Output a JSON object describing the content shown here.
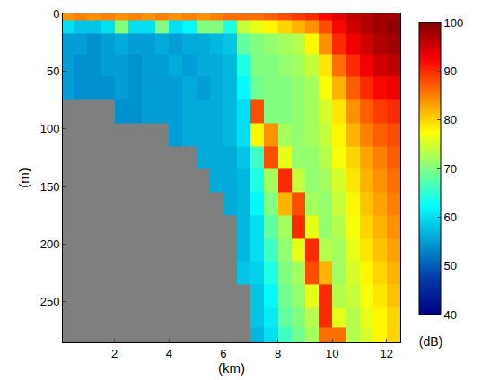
{
  "chart_data": {
    "type": "heatmap",
    "x": [
      0.25,
      0.75,
      1.25,
      1.75,
      2.25,
      2.75,
      3.25,
      3.75,
      4.25,
      4.75,
      5.25,
      5.75,
      6.25,
      6.75,
      7.25,
      7.75,
      8.25,
      8.75,
      9.25,
      9.75,
      10.25,
      10.75,
      11.25,
      11.75,
      12.25
    ],
    "y": [
      2,
      10,
      25,
      45,
      65,
      85,
      105,
      125,
      145,
      165,
      185,
      205,
      225,
      245,
      265,
      280
    ],
    "z": [
      [
        84,
        85,
        84,
        85,
        84,
        85,
        84,
        85,
        84,
        85,
        84,
        85,
        86,
        86,
        86,
        87,
        88,
        89,
        90,
        92,
        94,
        96,
        97,
        98,
        98
      ],
      [
        60,
        58,
        58,
        60,
        70,
        60,
        60,
        70,
        60,
        62,
        70,
        70,
        64,
        74,
        76,
        78,
        80,
        82,
        84,
        88,
        92,
        95,
        97,
        98,
        99
      ],
      [
        55,
        55,
        54,
        55,
        56,
        55,
        55,
        56,
        55,
        56,
        56,
        57,
        58,
        68,
        70,
        71,
        72,
        73,
        78,
        84,
        90,
        93,
        95,
        97,
        98
      ],
      [
        55,
        54,
        54,
        55,
        55,
        54,
        55,
        55,
        56,
        55,
        56,
        56,
        57,
        64,
        70,
        70,
        71,
        72,
        74,
        79,
        86,
        90,
        93,
        95,
        96
      ],
      [
        55,
        54,
        54,
        54,
        55,
        54,
        55,
        55,
        55,
        56,
        55,
        56,
        57,
        62,
        69,
        70,
        70,
        71,
        72,
        77,
        82,
        87,
        90,
        92,
        93
      ],
      [
        null,
        null,
        null,
        null,
        54,
        54,
        55,
        55,
        55,
        56,
        56,
        56,
        57,
        60,
        88,
        70,
        70,
        71,
        72,
        75,
        79,
        84,
        87,
        89,
        90
      ],
      [
        null,
        null,
        null,
        null,
        null,
        null,
        null,
        null,
        55,
        56,
        56,
        56,
        57,
        60,
        78,
        84,
        72,
        71,
        72,
        74,
        78,
        82,
        85,
        87,
        88
      ],
      [
        null,
        null,
        null,
        null,
        null,
        null,
        null,
        null,
        null,
        null,
        56,
        56,
        56,
        58,
        66,
        88,
        76,
        71,
        71,
        73,
        77,
        80,
        83,
        85,
        87
      ],
      [
        null,
        null,
        null,
        null,
        null,
        null,
        null,
        null,
        null,
        null,
        null,
        56,
        56,
        57,
        64,
        72,
        90,
        74,
        71,
        72,
        75,
        79,
        82,
        84,
        86
      ],
      [
        null,
        null,
        null,
        null,
        null,
        null,
        null,
        null,
        null,
        null,
        null,
        null,
        56,
        57,
        62,
        70,
        82,
        88,
        72,
        71,
        74,
        78,
        81,
        83,
        85
      ],
      [
        null,
        null,
        null,
        null,
        null,
        null,
        null,
        null,
        null,
        null,
        null,
        null,
        null,
        57,
        60,
        68,
        72,
        90,
        76,
        71,
        73,
        77,
        80,
        82,
        84
      ],
      [
        null,
        null,
        null,
        null,
        null,
        null,
        null,
        null,
        null,
        null,
        null,
        null,
        null,
        57,
        60,
        66,
        71,
        76,
        90,
        73,
        72,
        76,
        79,
        81,
        83
      ],
      [
        null,
        null,
        null,
        null,
        null,
        null,
        null,
        null,
        null,
        null,
        null,
        null,
        null,
        58,
        59,
        64,
        70,
        72,
        88,
        82,
        72,
        75,
        78,
        80,
        82
      ],
      [
        null,
        null,
        null,
        null,
        null,
        null,
        null,
        null,
        null,
        null,
        null,
        null,
        null,
        null,
        58,
        62,
        69,
        71,
        76,
        90,
        73,
        74,
        77,
        79,
        81
      ],
      [
        null,
        null,
        null,
        null,
        null,
        null,
        null,
        null,
        null,
        null,
        null,
        null,
        null,
        null,
        58,
        61,
        68,
        70,
        73,
        90,
        76,
        73,
        76,
        78,
        80
      ],
      [
        null,
        null,
        null,
        null,
        null,
        null,
        null,
        null,
        null,
        null,
        null,
        null,
        null,
        null,
        57,
        60,
        66,
        69,
        72,
        86,
        86,
        73,
        75,
        78,
        80
      ]
    ],
    "xlim": [
      0.1,
      12.5
    ],
    "xticks": [
      2,
      4,
      6,
      8,
      10,
      12
    ],
    "ylim": [
      285,
      0
    ],
    "yticks": [
      0,
      50,
      100,
      150,
      200,
      250
    ],
    "x_label": "(km)",
    "y_label": "(m)",
    "colorbar_label": "(dB)",
    "zlim": [
      40,
      100
    ],
    "zticks": [
      40,
      50,
      60,
      70,
      80,
      90,
      100
    ],
    "color": "Jet"
  }
}
